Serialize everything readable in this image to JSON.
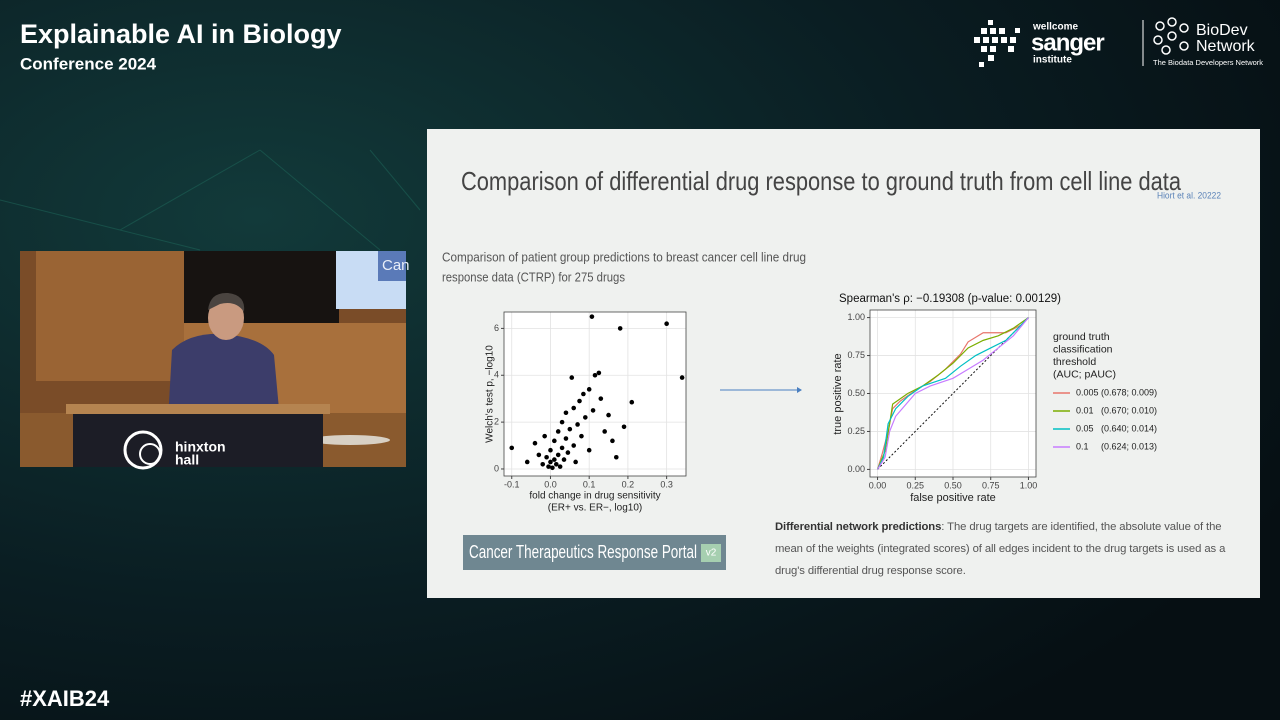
{
  "header": {
    "title": "Explainable AI in Biology",
    "subtitle": "Conference 2024"
  },
  "logos": {
    "wellcome": "wellcome",
    "sanger": "sanger",
    "institute": "institute",
    "biodev": "BioDev",
    "network": "Network",
    "tagline": "The Biodata Developers Network"
  },
  "hashtag": "#XAIB24",
  "video": {
    "podium_line1": "hinxton",
    "podium_line2": "hall",
    "screen_text": "Can"
  },
  "slide": {
    "title": "Comparison of differential drug response to ground truth from cell line data",
    "citation": "Hiort et al. 20222",
    "description": [
      "Comparison of patient group predictions to breast cancer cell line drug",
      "response data (CTRP) for 275 drugs"
    ],
    "portal": "Cancer Therapeutics Response Portal",
    "portal_badge": "v2",
    "paragraph": {
      "bold": "Differential network predictions",
      "text": ": The drug targets are identified, the absolute value of the mean of the weights (integrated scores) of all edges incident to the drug targets is used as a drug's differential drug response score."
    }
  },
  "chart_data": [
    {
      "type": "scatter",
      "x_label": [
        "fold change in drug sensitivity",
        "(ER+ vs. ER−, log10)"
      ],
      "y_label": "Welch's test p, −log10",
      "color": "#000000",
      "xlim": [
        -0.12,
        0.35
      ],
      "xticks": [
        -0.1,
        {
          "value": 0,
          "label": "0.0"
        },
        0.1,
        0.2,
        0.3
      ],
      "ylim": [
        -0.3,
        6.7
      ],
      "yticks": [
        0,
        2,
        4,
        6
      ],
      "grid": true,
      "x": [
        -0.1,
        -0.06,
        -0.04,
        -0.03,
        -0.02,
        -0.015,
        -0.01,
        -0.005,
        0,
        0,
        0.005,
        0.01,
        0.01,
        0.015,
        0.02,
        0.02,
        0.025,
        0.03,
        0.03,
        0.035,
        0.04,
        0.04,
        0.045,
        0.05,
        0.055,
        0.06,
        0.06,
        0.065,
        0.07,
        0.075,
        0.08,
        0.085,
        0.09,
        0.1,
        0.1,
        0.107,
        0.11,
        0.115,
        0.125,
        0.13,
        0.14,
        0.15,
        0.16,
        0.17,
        0.18,
        0.19,
        0.21,
        0.3,
        0.34
      ],
      "values": [
        0.9,
        0.3,
        1.1,
        0.6,
        0.2,
        1.4,
        0.5,
        0.1,
        0.3,
        0.8,
        0.05,
        0.4,
        1.2,
        0.2,
        0.6,
        1.6,
        0.1,
        0.9,
        2.0,
        0.4,
        1.3,
        2.4,
        0.7,
        1.7,
        3.9,
        1.0,
        2.6,
        0.3,
        1.9,
        2.9,
        1.4,
        3.2,
        2.2,
        3.4,
        0.8,
        6.5,
        2.5,
        4.0,
        4.1,
        3.0,
        1.6,
        2.3,
        1.2,
        0.5,
        6.0,
        1.8,
        2.85,
        6.2,
        3.9
      ]
    },
    {
      "type": "line",
      "title": "Spearman's ρ: −0.19308 (p-value: 0.00129)",
      "x_label": "false positive rate",
      "y_label": "true positive rate",
      "xlim": [
        -0.05,
        1.05
      ],
      "ylim": [
        -0.05,
        1.05
      ],
      "xticks": [
        {
          "value": 0,
          "label": "0.00"
        },
        {
          "value": 0.25,
          "label": "0.25"
        },
        {
          "value": 0.5,
          "label": "0.50"
        },
        {
          "value": 0.75,
          "label": "0.75"
        },
        {
          "value": 1,
          "label": "1.00"
        }
      ],
      "yticks": [
        {
          "value": 0,
          "label": "0.00"
        },
        {
          "value": 0.25,
          "label": "0.25"
        },
        {
          "value": 0.5,
          "label": "0.50"
        },
        {
          "value": 0.75,
          "label": "0.75"
        },
        {
          "value": 1,
          "label": "1.00"
        }
      ],
      "grid": true,
      "legend_title": [
        "ground truth",
        "classification",
        "threshold",
        "(AUC; pAUC)"
      ],
      "legend_position": "right",
      "series": [
        {
          "name": "0.005 (0.678; 0.009)",
          "color": "#e8756b",
          "x": [
            0,
            0.03,
            0.07,
            0.1,
            0.15,
            0.25,
            0.35,
            0.45,
            0.55,
            0.6,
            0.7,
            0.85,
            0.95,
            1
          ],
          "values": [
            0,
            0.1,
            0.25,
            0.4,
            0.45,
            0.52,
            0.58,
            0.66,
            0.76,
            0.84,
            0.9,
            0.9,
            0.95,
            1
          ]
        },
        {
          "name": "0.01   (0.670; 0.010)",
          "color": "#7cae00",
          "x": [
            0,
            0.05,
            0.08,
            0.1,
            0.2,
            0.3,
            0.4,
            0.5,
            0.6,
            0.7,
            0.8,
            0.9,
            1
          ],
          "values": [
            0,
            0.12,
            0.3,
            0.43,
            0.5,
            0.55,
            0.62,
            0.7,
            0.8,
            0.85,
            0.88,
            0.93,
            1
          ]
        },
        {
          "name": "0.05   (0.640; 0.014)",
          "color": "#00bfc4",
          "x": [
            0,
            0.04,
            0.07,
            0.12,
            0.2,
            0.3,
            0.45,
            0.55,
            0.65,
            0.75,
            0.85,
            0.95,
            1
          ],
          "values": [
            0,
            0.08,
            0.3,
            0.4,
            0.48,
            0.55,
            0.6,
            0.68,
            0.75,
            0.8,
            0.85,
            0.95,
            1
          ]
        },
        {
          "name": "0.1     (0.624; 0.013)",
          "color": "#c77cff",
          "x": [
            0,
            0.05,
            0.08,
            0.12,
            0.25,
            0.35,
            0.5,
            0.6,
            0.7,
            0.8,
            0.9,
            1
          ],
          "values": [
            0,
            0.08,
            0.25,
            0.35,
            0.5,
            0.55,
            0.6,
            0.66,
            0.72,
            0.8,
            0.88,
            1
          ]
        }
      ]
    }
  ]
}
